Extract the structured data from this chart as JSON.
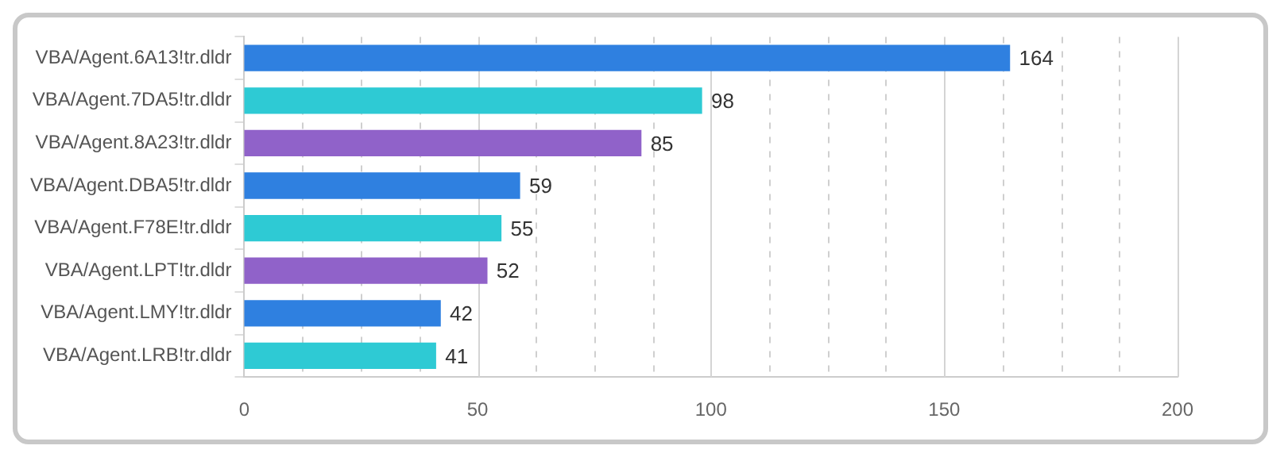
{
  "chart_data": {
    "type": "bar",
    "orientation": "horizontal",
    "categories": [
      "VBA/Agent.6A13!tr.dldr",
      "VBA/Agent.7DA5!tr.dldr",
      "VBA/Agent.8A23!tr.dldr",
      "VBA/Agent.DBA5!tr.dldr",
      "VBA/Agent.F78E!tr.dldr",
      "VBA/Agent.LPT!tr.dldr",
      "VBA/Agent.LMY!tr.dldr",
      "VBA/Agent.LRB!tr.dldr"
    ],
    "values": [
      164,
      98,
      85,
      59,
      55,
      52,
      42,
      41
    ],
    "colors": [
      "#2f80e0",
      "#2ecad4",
      "#9062c9",
      "#2f80e0",
      "#2ecad4",
      "#9062c9",
      "#2f80e0",
      "#2ecad4"
    ],
    "xlim": [
      0,
      200
    ],
    "xticks": [
      0,
      {
        "value": 12.5,
        "label": null
      },
      {
        "value": 25,
        "label": null
      },
      {
        "value": 37.5,
        "label": null
      },
      50,
      {
        "value": 62.5,
        "label": null
      },
      {
        "value": 75,
        "label": null
      },
      {
        "value": 87.5,
        "label": null
      },
      100,
      {
        "value": 112.5,
        "label": null
      },
      {
        "value": 125,
        "label": null
      },
      {
        "value": 137.5,
        "label": null
      },
      150,
      {
        "value": 162.5,
        "label": null
      },
      {
        "value": 175,
        "label": null
      },
      {
        "value": 187.5,
        "label": null
      },
      200
    ],
    "grid": "x",
    "data_labels": true,
    "legend": false
  }
}
